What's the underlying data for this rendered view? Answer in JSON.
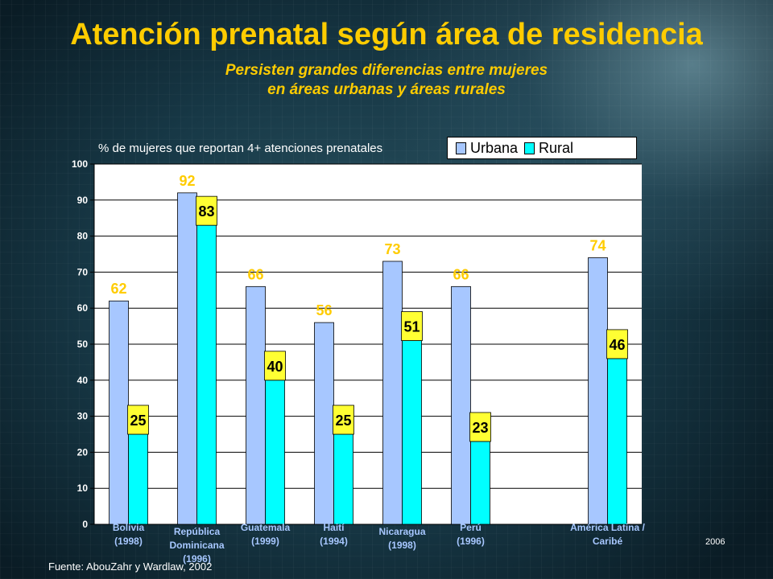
{
  "title": "Atención prenatal según área de residencia",
  "subtitle": [
    "Persisten grandes diferencias entre mujeres",
    "en áreas urbanas y áreas rurales"
  ],
  "source": "Fuente: AbouZahr y Wardlaw, 2002",
  "year_note": "2006",
  "colors": {
    "title": "#ffcc00",
    "urbana": "#a7c7ff",
    "rural": "#00ffff",
    "label_box": "#ffff33",
    "plot_bg": "#ffffff"
  },
  "chart_data": {
    "type": "bar",
    "ylabel": "% de mujeres que reportan 4+ atenciones prenatales",
    "ylim": [
      0,
      100
    ],
    "yticks": [
      0,
      10,
      20,
      30,
      40,
      50,
      60,
      70,
      80,
      90,
      100
    ],
    "grid": true,
    "legend_position": "top-right",
    "categories": [
      [
        "Bolivia",
        "(1998)"
      ],
      [
        "República",
        "Dominicana",
        "(1996)"
      ],
      [
        "Guatemala",
        "(1999)"
      ],
      [
        "Haití",
        "(1994)"
      ],
      [
        "Nicaragua",
        "(1998)"
      ],
      [
        "Perú",
        "(1996)"
      ],
      [
        "América Latina /",
        "Caribé"
      ]
    ],
    "series": [
      {
        "name": "Urbana",
        "values": [
          62,
          92,
          66,
          56,
          73,
          66,
          74
        ]
      },
      {
        "name": "Rural",
        "values": [
          25,
          83,
          40,
          25,
          51,
          23,
          46
        ]
      }
    ]
  }
}
